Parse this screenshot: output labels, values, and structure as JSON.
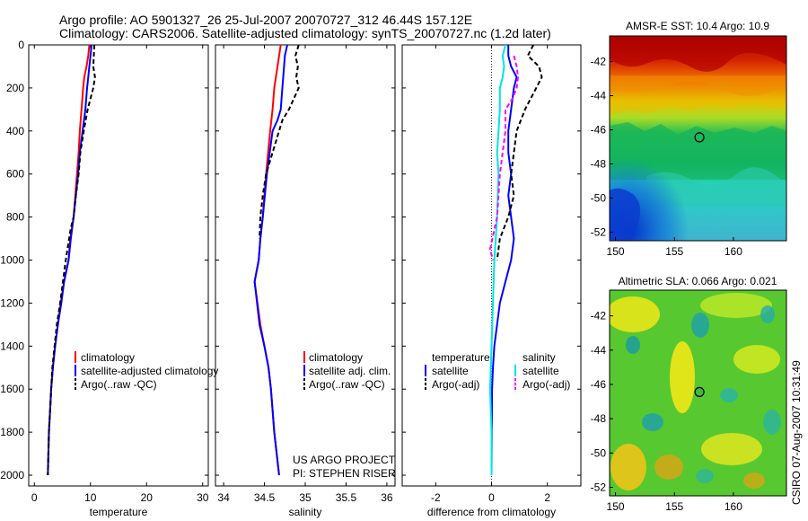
{
  "header": {
    "line1": "Argo profile: AO 5901327_26 25-Jul-2007 20070727_312 46.44S 157.12E",
    "line2": "Climatology: CARS2006. Satellite-adjusted climatology: synTS_20070727.nc (1.2d later)"
  },
  "credit": {
    "line1": "US ARGO PROJECT",
    "line2": "PI: STEPHEN RISER"
  },
  "stamp": "CSIRO 07-Aug-2007 10:31:49",
  "colors": {
    "climatology": "#ff0000",
    "satellite": "#0000ff",
    "argo": "#000000",
    "satellite_salinity": "#00e5e5",
    "argo_salinity": "#ff00ff"
  },
  "chart_data": [
    {
      "type": "line",
      "xlabel": "temperature",
      "xlim": [
        -1,
        31
      ],
      "ylim": [
        2050,
        0
      ],
      "xticks": [
        0,
        10,
        20,
        30
      ],
      "yticks": [
        0,
        200,
        400,
        600,
        800,
        1000,
        1200,
        1400,
        1600,
        1800,
        2000
      ],
      "legend": [
        "climatology",
        "satellite-adjusted climatology",
        "Argo(..raw -QC)"
      ],
      "series": [
        {
          "name": "climatology",
          "color": "#ff0000",
          "dash": "solid",
          "points": [
            [
              9.8,
              0
            ],
            [
              9.6,
              50
            ],
            [
              9.3,
              100
            ],
            [
              8.9,
              150
            ],
            [
              8.7,
              200
            ],
            [
              8.4,
              300
            ],
            [
              8.1,
              400
            ],
            [
              7.9,
              500
            ],
            [
              7.6,
              600
            ],
            [
              7.3,
              700
            ],
            [
              7.0,
              800
            ],
            [
              6.4,
              900
            ],
            [
              6.1,
              1000
            ],
            [
              5.3,
              1100
            ],
            [
              4.7,
              1200
            ],
            [
              4.2,
              1300
            ],
            [
              3.7,
              1400
            ],
            [
              3.3,
              1500
            ],
            [
              3.0,
              1600
            ],
            [
              2.8,
              1700
            ],
            [
              2.6,
              1800
            ],
            [
              2.5,
              1900
            ],
            [
              2.4,
              2000
            ]
          ]
        },
        {
          "name": "satellite-adjusted climatology",
          "color": "#0000ff",
          "dash": "solid",
          "points": [
            [
              10.2,
              0
            ],
            [
              10.0,
              50
            ],
            [
              9.8,
              100
            ],
            [
              9.6,
              150
            ],
            [
              9.4,
              200
            ],
            [
              9.1,
              300
            ],
            [
              8.6,
              400
            ],
            [
              8.1,
              500
            ],
            [
              7.8,
              600
            ],
            [
              7.4,
              700
            ],
            [
              7.0,
              800
            ],
            [
              6.5,
              900
            ],
            [
              6.1,
              1000
            ],
            [
              5.3,
              1100
            ],
            [
              4.8,
              1200
            ],
            [
              4.2,
              1300
            ],
            [
              3.7,
              1400
            ],
            [
              3.3,
              1500
            ],
            [
              3.0,
              1600
            ],
            [
              2.8,
              1700
            ],
            [
              2.6,
              1800
            ],
            [
              2.5,
              1900
            ],
            [
              2.4,
              2000
            ]
          ]
        },
        {
          "name": "Argo(..raw -QC)",
          "color": "#000000",
          "dash": "dashed",
          "points": [
            [
              10.7,
              0
            ],
            [
              10.6,
              50
            ],
            [
              10.5,
              100
            ],
            [
              10.8,
              150
            ],
            [
              10.5,
              200
            ],
            [
              9.5,
              300
            ],
            [
              8.8,
              400
            ],
            [
              8.2,
              500
            ],
            [
              7.9,
              600
            ],
            [
              7.4,
              700
            ],
            [
              7.0,
              800
            ],
            [
              6.5,
              850
            ],
            [
              6.2,
              900
            ],
            [
              5.9,
              950
            ],
            [
              5.6,
              1000
            ],
            [
              5.1,
              1100
            ],
            [
              4.6,
              1200
            ],
            [
              4.0,
              1300
            ],
            [
              3.6,
              1400
            ],
            [
              3.2,
              1500
            ],
            [
              3.0,
              1600
            ],
            [
              2.8,
              1700
            ],
            [
              2.6,
              1800
            ],
            [
              2.5,
              1900
            ],
            [
              2.4,
              2000
            ]
          ]
        }
      ]
    },
    {
      "type": "line",
      "xlabel": "salinity",
      "xlim": [
        33.9,
        36.1
      ],
      "ylim": [
        2050,
        0
      ],
      "xticks": [
        34,
        34.5,
        35,
        35.5,
        36
      ],
      "xticklabels": [
        "34",
        "34.5",
        "35",
        "35.5",
        "36"
      ],
      "yticks": [
        0,
        200,
        400,
        600,
        800,
        1000,
        1200,
        1400,
        1600,
        1800,
        2000
      ],
      "legend": [
        "climatology",
        "satellite adj. clim.",
        "Argo(..raw -QC)"
      ],
      "series": [
        {
          "name": "climatology",
          "color": "#ff0000",
          "dash": "solid",
          "points": [
            [
              34.7,
              0
            ],
            [
              34.68,
              50
            ],
            [
              34.66,
              100
            ],
            [
              34.62,
              200
            ],
            [
              34.6,
              300
            ],
            [
              34.57,
              400
            ],
            [
              34.52,
              600
            ],
            [
              34.48,
              800
            ],
            [
              34.45,
              900
            ],
            [
              34.43,
              1000
            ],
            [
              34.38,
              1100
            ],
            [
              34.45,
              1300
            ],
            [
              34.5,
              1400
            ],
            [
              34.55,
              1500
            ],
            [
              34.58,
              1600
            ],
            [
              34.62,
              1800
            ],
            [
              34.65,
              1900
            ],
            [
              34.68,
              2000
            ]
          ]
        },
        {
          "name": "satellite adj. clim.",
          "color": "#0000ff",
          "dash": "solid",
          "points": [
            [
              34.78,
              0
            ],
            [
              34.75,
              50
            ],
            [
              34.74,
              100
            ],
            [
              34.72,
              200
            ],
            [
              34.7,
              300
            ],
            [
              34.66,
              350
            ],
            [
              34.6,
              400
            ],
            [
              34.53,
              600
            ],
            [
              34.48,
              800
            ],
            [
              34.45,
              900
            ],
            [
              34.43,
              1000
            ],
            [
              34.38,
              1100
            ],
            [
              34.44,
              1300
            ],
            [
              34.5,
              1400
            ],
            [
              34.55,
              1500
            ],
            [
              34.58,
              1600
            ],
            [
              34.62,
              1800
            ],
            [
              34.65,
              1900
            ],
            [
              34.68,
              2000
            ]
          ]
        },
        {
          "name": "Argo(..raw -QC)",
          "color": "#000000",
          "dash": "dashed",
          "points": [
            [
              34.92,
              0
            ],
            [
              34.88,
              50
            ],
            [
              34.91,
              100
            ],
            [
              34.89,
              150
            ],
            [
              34.92,
              200
            ],
            [
              34.8,
              300
            ],
            [
              34.72,
              350
            ],
            [
              34.68,
              400
            ],
            [
              34.6,
              500
            ],
            [
              34.52,
              600
            ],
            [
              34.48,
              700
            ],
            [
              34.45,
              800
            ],
            [
              34.44,
              900
            ]
          ]
        }
      ]
    },
    {
      "type": "line",
      "xlabel": "difference from climatology",
      "xlim": [
        -3.2,
        3.2
      ],
      "ylim": [
        2050,
        0
      ],
      "xticks": [
        -2,
        0,
        2
      ],
      "yticks": [
        0,
        200,
        400,
        600,
        800,
        1000,
        1200,
        1400,
        1600,
        1800,
        2000
      ],
      "zero_line": 0,
      "legend_headers": [
        "temperature",
        "salinity"
      ],
      "legend": [
        "satellite",
        "Argo(-adj)",
        "satellite",
        "Argo(-adj)"
      ],
      "series": [
        {
          "name": "satellite",
          "group": "temperature",
          "color": "#0000ff",
          "dash": "solid",
          "points": [
            [
              0.6,
              0
            ],
            [
              0.6,
              50
            ],
            [
              0.7,
              100
            ],
            [
              0.9,
              150
            ],
            [
              0.8,
              200
            ],
            [
              0.7,
              300
            ],
            [
              0.6,
              400
            ],
            [
              0.6,
              500
            ],
            [
              0.7,
              600
            ],
            [
              0.6,
              700
            ],
            [
              0.7,
              800
            ],
            [
              0.8,
              900
            ],
            [
              0.7,
              1000
            ],
            [
              0.5,
              1100
            ],
            [
              0.3,
              1200
            ],
            [
              0.2,
              1300
            ],
            [
              0.1,
              1400
            ],
            [
              0.05,
              1500
            ],
            [
              0.02,
              1600
            ],
            [
              0.01,
              1800
            ],
            [
              0.0,
              2000
            ]
          ]
        },
        {
          "name": "Argo(-adj)",
          "group": "temperature",
          "color": "#000000",
          "dash": "dashed",
          "points": [
            [
              1.5,
              0
            ],
            [
              1.3,
              50
            ],
            [
              1.7,
              100
            ],
            [
              1.8,
              150
            ],
            [
              1.6,
              200
            ],
            [
              1.2,
              300
            ],
            [
              0.9,
              400
            ],
            [
              0.8,
              500
            ],
            [
              0.7,
              600
            ],
            [
              0.8,
              700
            ],
            [
              0.6,
              800
            ],
            [
              0.3,
              900
            ],
            [
              0.2,
              1000
            ]
          ]
        },
        {
          "name": "satellite",
          "group": "salinity",
          "color": "#00e5e5",
          "dash": "solid",
          "points": [
            [
              0.5,
              0
            ],
            [
              0.4,
              50
            ],
            [
              0.45,
              100
            ],
            [
              0.4,
              150
            ],
            [
              0.3,
              200
            ],
            [
              0.3,
              300
            ],
            [
              0.25,
              400
            ],
            [
              0.2,
              500
            ],
            [
              0.25,
              600
            ],
            [
              0.2,
              800
            ],
            [
              0.15,
              900
            ],
            [
              0.1,
              1000
            ],
            [
              0.05,
              1200
            ],
            [
              0.0,
              1400
            ],
            [
              -0.05,
              1600
            ],
            [
              0.0,
              1800
            ],
            [
              0.0,
              2000
            ]
          ]
        },
        {
          "name": "Argo(-adj)",
          "group": "salinity",
          "color": "#ff00ff",
          "dash": "dashed",
          "points": [
            [
              0.8,
              50
            ],
            [
              0.9,
              100
            ],
            [
              0.95,
              150
            ],
            [
              0.9,
              200
            ],
            [
              0.75,
              250
            ],
            [
              0.5,
              300
            ],
            [
              0.5,
              350
            ],
            [
              0.5,
              400
            ],
            [
              0.3,
              600
            ],
            [
              0.2,
              800
            ],
            [
              -0.05,
              950
            ],
            [
              0.05,
              1000
            ]
          ]
        }
      ]
    },
    {
      "type": "heatmap",
      "title": "AMSR-E SST: 10.4 Argo: 10.9",
      "xlim": [
        149.5,
        164.5
      ],
      "ylim": [
        -52.5,
        -40.5
      ],
      "xticks": [
        150,
        155,
        160
      ],
      "yticks": [
        -52,
        -50,
        -48,
        -46,
        -44,
        -42
      ],
      "marker": {
        "lon": 157.12,
        "lat": -46.44
      }
    },
    {
      "type": "heatmap",
      "title": "Altimetric SLA: 0.066 Argo: 0.021",
      "xlim": [
        149.5,
        164.5
      ],
      "ylim": [
        -52.5,
        -40.5
      ],
      "xticks": [
        150,
        155,
        160
      ],
      "yticks": [
        -52,
        -50,
        -48,
        -46,
        -44,
        -42
      ],
      "marker": {
        "lon": 157.12,
        "lat": -46.44
      }
    }
  ]
}
